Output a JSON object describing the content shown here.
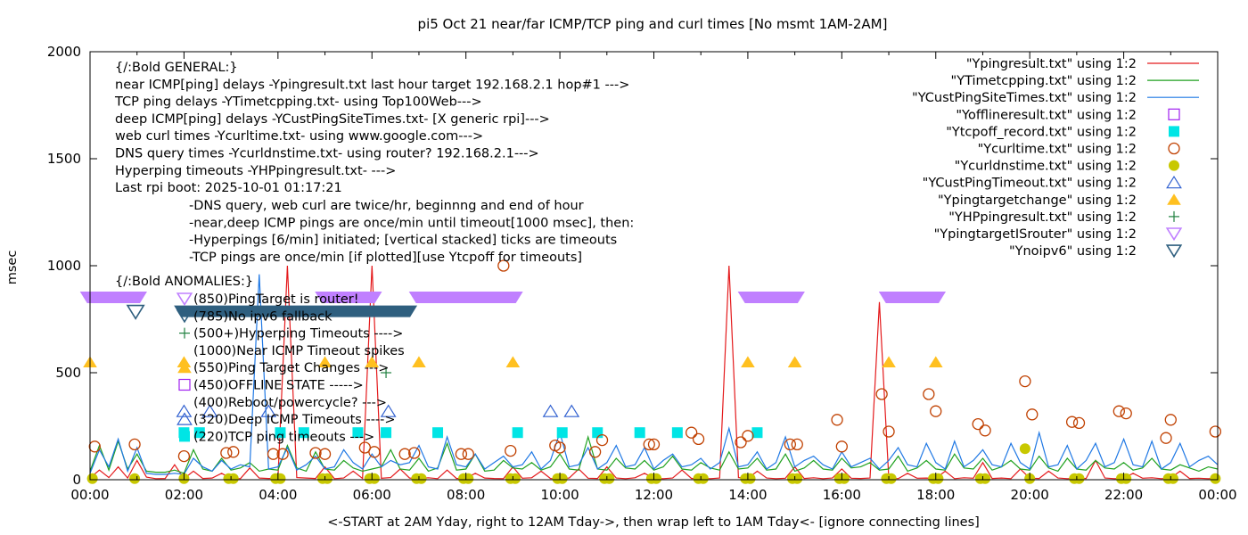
{
  "chart_data": {
    "type": "line",
    "title": "pi5 Oct 21  near/far ICMP/TCP ping and curl times [No msmt 1AM-2AM]",
    "xlabel": "<-START at 2AM Yday, right to 12AM Tday->, then wrap left to 1AM Tday<- [ignore connecting lines]",
    "ylabel": "msec",
    "xlim_hours": [
      0,
      24
    ],
    "ylim": [
      0,
      2000
    ],
    "x_ticks": [
      "00:00",
      "02:00",
      "04:00",
      "06:00",
      "08:00",
      "10:00",
      "12:00",
      "14:00",
      "16:00",
      "18:00",
      "20:00",
      "22:00",
      "00:00"
    ],
    "y_ticks": [
      0,
      500,
      1000,
      1500,
      2000
    ],
    "grid": false,
    "legend_position": "top-right",
    "gap_hours": [
      1.05,
      1.95
    ],
    "line_series": [
      {
        "name": "\"Ypingresult.txt\" using 1:2",
        "color": "#e41a1c",
        "x_start_hours": 0,
        "x_step_hours": 0.2,
        "values": [
          8,
          45,
          10,
          60,
          8,
          90,
          12,
          5,
          6,
          70,
          5,
          40,
          6,
          8,
          30,
          6,
          5,
          55,
          8,
          6,
          7,
          1000,
          10,
          8,
          6,
          60,
          5,
          8,
          40,
          6,
          1000,
          7,
          10,
          50,
          8,
          6,
          9,
          5,
          45,
          6,
          7,
          30,
          8,
          6,
          5,
          60,
          7,
          9,
          40,
          6,
          5,
          8,
          50,
          7,
          6,
          60,
          8,
          5,
          9,
          30,
          7,
          5,
          8,
          45,
          6,
          7,
          5,
          8,
          1000,
          10,
          6,
          40,
          8,
          5,
          7,
          60,
          6,
          9,
          5,
          8,
          50,
          7,
          6,
          8,
          830,
          9,
          5,
          30,
          7,
          8,
          6,
          40,
          5,
          9,
          7,
          80,
          6,
          8,
          5,
          50,
          7,
          6,
          40,
          8,
          5,
          7,
          6,
          90,
          8,
          5,
          6,
          30,
          7,
          9,
          5,
          8,
          40,
          6,
          7,
          5,
          8
        ]
      },
      {
        "name": "\"YTimetcpping.txt\" using 1:2",
        "color": "#1fa11f",
        "x_start_hours": 0,
        "x_step_hours": 0.2,
        "values": [
          40,
          160,
          45,
          180,
          50,
          120,
          40,
          35,
          35,
          45,
          30,
          140,
          50,
          40,
          100,
          45,
          55,
          80,
          40,
          50,
          45,
          160,
          55,
          40,
          130,
          50,
          45,
          90,
          55,
          40,
          50,
          60,
          140,
          50,
          45,
          100,
          40,
          55,
          170,
          45,
          50,
          120,
          40,
          45,
          90,
          55,
          50,
          80,
          45,
          60,
          120,
          50,
          45,
          200,
          50,
          45,
          100,
          55,
          50,
          90,
          45,
          60,
          110,
          50,
          45,
          80,
          55,
          45,
          130,
          50,
          55,
          100,
          45,
          50,
          120,
          40,
          55,
          90,
          50,
          45,
          100,
          55,
          60,
          80,
          45,
          50,
          110,
          40,
          55,
          90,
          50,
          45,
          120,
          55,
          50,
          100,
          45,
          60,
          90,
          50,
          45,
          110,
          55,
          40,
          100,
          50,
          45,
          90,
          55,
          50,
          80,
          45,
          55,
          100,
          50,
          45,
          70,
          55,
          40,
          60,
          50
        ]
      },
      {
        "name": "\"YCustPingSiteTimes.txt\" using 1:2",
        "color": "#1f78e4",
        "x_start_hours": 0,
        "x_step_hours": 0.2,
        "values": [
          30,
          140,
          60,
          190,
          40,
          150,
          30,
          25,
          25,
          30,
          25,
          100,
          60,
          40,
          90,
          50,
          70,
          60,
          960,
          50,
          60,
          150,
          45,
          70,
          110,
          50,
          60,
          140,
          80,
          50,
          120,
          60,
          90,
          70,
          80,
          160,
          60,
          50,
          200,
          70,
          60,
          120,
          50,
          80,
          110,
          60,
          70,
          130,
          50,
          90,
          220,
          60,
          70,
          150,
          50,
          80,
          160,
          60,
          70,
          150,
          50,
          90,
          120,
          60,
          70,
          100,
          50,
          80,
          240,
          60,
          70,
          130,
          50,
          80,
          200,
          60,
          90,
          110,
          70,
          50,
          130,
          60,
          80,
          100,
          50,
          90,
          150,
          70,
          60,
          170,
          80,
          50,
          180,
          60,
          90,
          140,
          70,
          60,
          170,
          80,
          50,
          220,
          60,
          70,
          160,
          50,
          90,
          170,
          60,
          80,
          190,
          70,
          60,
          180,
          50,
          80,
          170,
          60,
          90,
          110,
          70
        ]
      }
    ],
    "point_series": [
      {
        "name": "\"Yofflineresult.txt\" using 1:2",
        "marker": "open-square",
        "color": "#a020f0",
        "points": []
      },
      {
        "name": "\"Ytcpoff_record.txt\" using 1:2",
        "marker": "filled-square",
        "color": "#00e5e5",
        "points": [
          [
            2.0,
            220
          ],
          [
            2.33,
            220
          ],
          [
            4.05,
            220
          ],
          [
            4.55,
            220
          ],
          [
            5.7,
            220
          ],
          [
            6.3,
            220
          ],
          [
            7.4,
            220
          ],
          [
            9.1,
            220
          ],
          [
            10.05,
            220
          ],
          [
            10.8,
            220
          ],
          [
            11.7,
            220
          ],
          [
            12.5,
            220
          ],
          [
            14.2,
            220
          ]
        ]
      },
      {
        "name": "\"Ycurltime.txt\" using 1:2",
        "marker": "open-circle",
        "color": "#c04000",
        "points": [
          [
            0.1,
            155
          ],
          [
            0.95,
            165
          ],
          [
            2.0,
            110
          ],
          [
            2.9,
            125
          ],
          [
            3.05,
            130
          ],
          [
            3.9,
            120
          ],
          [
            4.1,
            120
          ],
          [
            4.8,
            125
          ],
          [
            5.0,
            120
          ],
          [
            5.85,
            150
          ],
          [
            6.05,
            130
          ],
          [
            6.7,
            120
          ],
          [
            6.9,
            125
          ],
          [
            7.9,
            120
          ],
          [
            8.05,
            120
          ],
          [
            8.8,
            1000
          ],
          [
            8.95,
            135
          ],
          [
            9.9,
            160
          ],
          [
            10.0,
            150
          ],
          [
            10.75,
            130
          ],
          [
            10.9,
            185
          ],
          [
            11.9,
            165
          ],
          [
            12.0,
            165
          ],
          [
            12.8,
            220
          ],
          [
            12.95,
            190
          ],
          [
            13.85,
            175
          ],
          [
            14.0,
            205
          ],
          [
            14.9,
            165
          ],
          [
            15.05,
            165
          ],
          [
            15.9,
            280
          ],
          [
            16.0,
            155
          ],
          [
            16.85,
            400
          ],
          [
            17.0,
            225
          ],
          [
            17.85,
            400
          ],
          [
            18.0,
            320
          ],
          [
            18.9,
            260
          ],
          [
            19.05,
            230
          ],
          [
            19.9,
            460
          ],
          [
            20.05,
            305
          ],
          [
            20.9,
            270
          ],
          [
            21.05,
            265
          ],
          [
            21.9,
            320
          ],
          [
            22.05,
            310
          ],
          [
            22.9,
            195
          ],
          [
            23.0,
            280
          ],
          [
            23.95,
            225
          ]
        ]
      },
      {
        "name": "\"Ycurldnstime.txt\" using 1:2",
        "marker": "filled-circle",
        "color": "#c8c800",
        "points": [
          [
            0.05,
            5
          ],
          [
            0.95,
            5
          ],
          [
            2.0,
            5
          ],
          [
            2.95,
            5
          ],
          [
            3.05,
            5
          ],
          [
            3.95,
            5
          ],
          [
            4.05,
            5
          ],
          [
            4.95,
            5
          ],
          [
            5.05,
            5
          ],
          [
            5.95,
            5
          ],
          [
            6.05,
            5
          ],
          [
            6.95,
            5
          ],
          [
            7.05,
            5
          ],
          [
            7.95,
            5
          ],
          [
            8.05,
            5
          ],
          [
            8.95,
            5
          ],
          [
            9.05,
            5
          ],
          [
            9.95,
            5
          ],
          [
            10.05,
            5
          ],
          [
            10.95,
            5
          ],
          [
            11.05,
            5
          ],
          [
            11.95,
            5
          ],
          [
            12.05,
            5
          ],
          [
            12.95,
            5
          ],
          [
            13.05,
            5
          ],
          [
            13.95,
            5
          ],
          [
            14.05,
            5
          ],
          [
            14.95,
            5
          ],
          [
            15.05,
            5
          ],
          [
            15.95,
            5
          ],
          [
            16.05,
            5
          ],
          [
            16.95,
            5
          ],
          [
            17.05,
            5
          ],
          [
            17.95,
            5
          ],
          [
            18.05,
            5
          ],
          [
            18.95,
            5
          ],
          [
            19.05,
            5
          ],
          [
            19.9,
            145
          ],
          [
            20.0,
            5
          ],
          [
            20.95,
            5
          ],
          [
            21.05,
            5
          ],
          [
            21.95,
            5
          ],
          [
            22.05,
            5
          ],
          [
            22.95,
            5
          ],
          [
            23.05,
            5
          ],
          [
            23.95,
            5
          ]
        ]
      },
      {
        "name": "\"YCustPingTimeout.txt\" using 1:2",
        "marker": "open-triangle-up",
        "color": "#3060d0",
        "points": [
          [
            2.0,
            320
          ],
          [
            2.55,
            320
          ],
          [
            3.8,
            320
          ],
          [
            6.35,
            320
          ],
          [
            9.8,
            320
          ],
          [
            10.25,
            320
          ]
        ]
      },
      {
        "name": "\"Ypingtargetchange\" using 1:2",
        "marker": "filled-triangle-up",
        "color": "#ffc020",
        "points": [
          [
            0.0,
            550
          ],
          [
            2.0,
            550
          ],
          [
            5.0,
            550
          ],
          [
            6.0,
            550
          ],
          [
            7.0,
            550
          ],
          [
            9.0,
            550
          ],
          [
            14.0,
            550
          ],
          [
            15.0,
            550
          ],
          [
            17.0,
            550
          ],
          [
            18.0,
            550
          ]
        ]
      },
      {
        "name": "\"YHPpingresult.txt\" using 1:2",
        "marker": "plus",
        "color": "#208040",
        "points": [
          [
            6.3,
            500
          ]
        ]
      },
      {
        "name": "\"YpingtargetISrouter\" using 1:2",
        "marker": "open-triangle-down",
        "color": "#c080ff",
        "bands_hours": [
          [
            -0.1,
            1.1
          ],
          [
            4.9,
            6.1
          ],
          [
            6.9,
            9.1
          ],
          [
            13.9,
            15.1
          ],
          [
            16.9,
            18.1
          ]
        ],
        "value": 850
      },
      {
        "name": "\"Ynoipv6\" using 1:2",
        "marker": "open-triangle-down",
        "color": "#2f5f7f",
        "single_hours": [
          0.97
        ],
        "bands_hours": [
          [
            1.9,
            6.85
          ]
        ],
        "value": 785
      }
    ]
  },
  "annotations": {
    "general": [
      "{/:Bold GENERAL:}",
      "near ICMP[ping] delays -Ypingresult.txt last hour target 192.168.2.1 hop#1 --->",
      "TCP ping delays -YTimetcpping.txt- using Top100Web--->",
      "deep ICMP[ping] delays -YCustPingSiteTimes.txt- [X generic rpi]--->",
      "web curl times -Ycurltime.txt- using www.google.com--->",
      "DNS query times -Ycurldnstime.txt- using router? 192.168.2.1--->",
      "Hyperping timeouts -YHPpingresult.txt- --->",
      "Last rpi boot: 2025-10-01 01:17:21"
    ],
    "notes": [
      "-DNS query, web curl are twice/hr, beginnng and end of hour",
      "-near,deep ICMP pings are once/min until timeout[1000 msec], then:",
      "  -Hyperpings [6/min] initiated; [vertical stacked] ticks are timeouts",
      "-TCP pings are once/min [if plotted][use Ytcpoff for timeouts]"
    ],
    "anomalies_header": "{/:Bold ANOMALIES:}",
    "anomalies": [
      {
        "marker": "open-triangle-down",
        "color": "#c080ff",
        "text": "(850)PingTarget is router!"
      },
      {
        "marker": "open-triangle-down",
        "color": "#2f5f7f",
        "text": "(785)No ipv6 fallback"
      },
      {
        "marker": "plus",
        "color": "#208040",
        "text": "(500+)Hyperping Timeouts ---->"
      },
      {
        "marker": "none",
        "color": "",
        "text": "(1000)Near ICMP Timeout spikes"
      },
      {
        "marker": "filled-triangle-up",
        "color": "#ffc020",
        "text": "(550)Ping Target Changes --->"
      },
      {
        "marker": "open-square",
        "color": "#a020f0",
        "text": "(450)OFFLINE STATE ----->"
      },
      {
        "marker": "none",
        "color": "",
        "text": "(400)Reboot/powercycle? --->"
      },
      {
        "marker": "open-triangle-up",
        "color": "#3060d0",
        "text": "(320)Deep ICMP Timeouts ---->"
      },
      {
        "marker": "filled-square",
        "color": "#00e5e5",
        "text": "(220)TCP ping timeouts --->"
      }
    ]
  }
}
